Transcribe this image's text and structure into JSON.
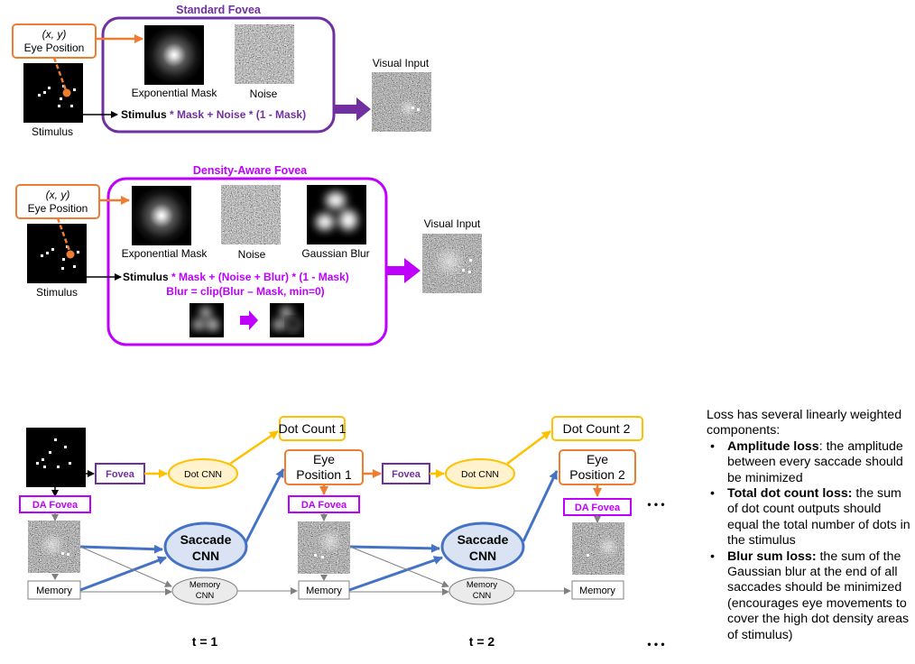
{
  "standard_fovea": {
    "title": "Standard Fovea",
    "eye_box": {
      "coord": "(x, y)",
      "label": "Eye Position"
    },
    "stimulus_label": "Stimulus",
    "mask_label": "Exponential Mask",
    "noise_label": "Noise",
    "formula_bold": "Stimulus",
    "formula_rest": " * Mask + Noise * (1 - Mask)",
    "output_label": "Visual Input"
  },
  "density_aware_fovea": {
    "title": "Density-Aware Fovea",
    "eye_box": {
      "coord": "(x, y)",
      "label": "Eye Position"
    },
    "stimulus_label": "Stimulus",
    "mask_label": "Exponential Mask",
    "noise_label": "Noise",
    "blur_label": "Gaussian Blur",
    "formula_bold": "Stimulus",
    "formula_rest": " * Mask + (Noise + Blur) * (1 - Mask)",
    "formula2": "Blur = clip(Blur – Mask, min=0)",
    "output_label": "Visual Input"
  },
  "pipeline": {
    "dot_count_1": "Dot Count 1",
    "dot_count_2": "Dot Count 2",
    "fovea_label": "Fovea",
    "da_fovea_label": "DA Fovea",
    "dot_cnn_label": "Dot CNN",
    "saccade_cnn_line1": "Saccade",
    "saccade_cnn_line2": "CNN",
    "memory_label": "Memory",
    "memory_cnn_line1": "Memory",
    "memory_cnn_line2": "CNN",
    "eye_position_line1": "Eye",
    "eye_position_1_line2": "Position 1",
    "eye_position_2_line2": "Position 2",
    "time_1": "t = 1",
    "time_2": "t = 2",
    "ellipsis": "• • •"
  },
  "loss_notes": {
    "intro": "Loss has several linearly weighted components:",
    "items": [
      {
        "title": "Amplitude loss",
        "text": ": the amplitude between every saccade should be minimized"
      },
      {
        "title": "Total dot count loss:",
        "text": " the sum of dot count outputs should equal the total number of dots in the stimulus"
      },
      {
        "title": "Blur sum loss:",
        "text": " the sum of the Gaussian blur at the end of all saccades should be minimized (encourages eye movements to cover the high dot density areas of stimulus)"
      }
    ]
  },
  "colors": {
    "standard_purple": "#7030a0",
    "da_magenta": "#c000ff",
    "orange": "#ed7d31",
    "blue_arrow": "#4472c4",
    "gold": "#ffc000",
    "gold_fill": "#fff2cc",
    "saccade_fill": "#dae3f3",
    "gray": "#808080"
  }
}
